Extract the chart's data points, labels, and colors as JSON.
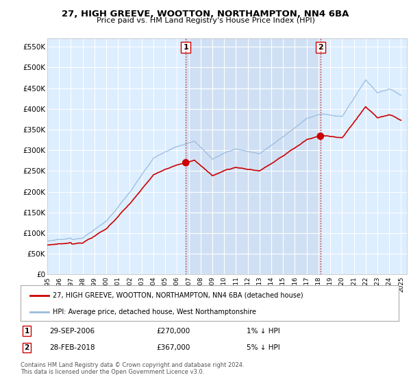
{
  "title": "27, HIGH GREEVE, WOOTTON, NORTHAMPTON, NN4 6BA",
  "subtitle": "Price paid vs. HM Land Registry's House Price Index (HPI)",
  "legend_line1": "27, HIGH GREEVE, WOOTTON, NORTHAMPTON, NN4 6BA (detached house)",
  "legend_line2": "HPI: Average price, detached house, West Northamptonshire",
  "purchase1_date": "29-SEP-2006",
  "purchase1_price": "£270,000",
  "purchase1_hpi": "1% ↓ HPI",
  "purchase2_date": "28-FEB-2018",
  "purchase2_price": "£367,000",
  "purchase2_hpi": "5% ↓ HPI",
  "footer": "Contains HM Land Registry data © Crown copyright and database right 2024.\nThis data is licensed under the Open Government Licence v3.0.",
  "price_color": "#cc0000",
  "hpi_color": "#99bbdd",
  "vline_color": "#cc0000",
  "background_color": "#ffffff",
  "plot_bg_color": "#ddeeff",
  "grid_color": "#ffffff",
  "highlight_color": "#c8d8ee",
  "ylim": [
    0,
    570000
  ],
  "yticks": [
    0,
    50000,
    100000,
    150000,
    200000,
    250000,
    300000,
    350000,
    400000,
    450000,
    500000,
    550000
  ],
  "ytick_labels": [
    "£0",
    "£50K",
    "£100K",
    "£150K",
    "£200K",
    "£250K",
    "£300K",
    "£350K",
    "£400K",
    "£450K",
    "£500K",
    "£550K"
  ],
  "purchase1_x": 2006.75,
  "purchase1_y": 270000,
  "purchase2_x": 2018.17,
  "purchase2_y": 367000,
  "xmin": 1995,
  "xmax": 2025.5,
  "xtick_years": [
    1995,
    1996,
    1997,
    1998,
    1999,
    2000,
    2001,
    2002,
    2003,
    2004,
    2005,
    2006,
    2007,
    2008,
    2009,
    2010,
    2011,
    2012,
    2013,
    2014,
    2015,
    2016,
    2017,
    2018,
    2019,
    2020,
    2021,
    2022,
    2023,
    2024,
    2025
  ]
}
